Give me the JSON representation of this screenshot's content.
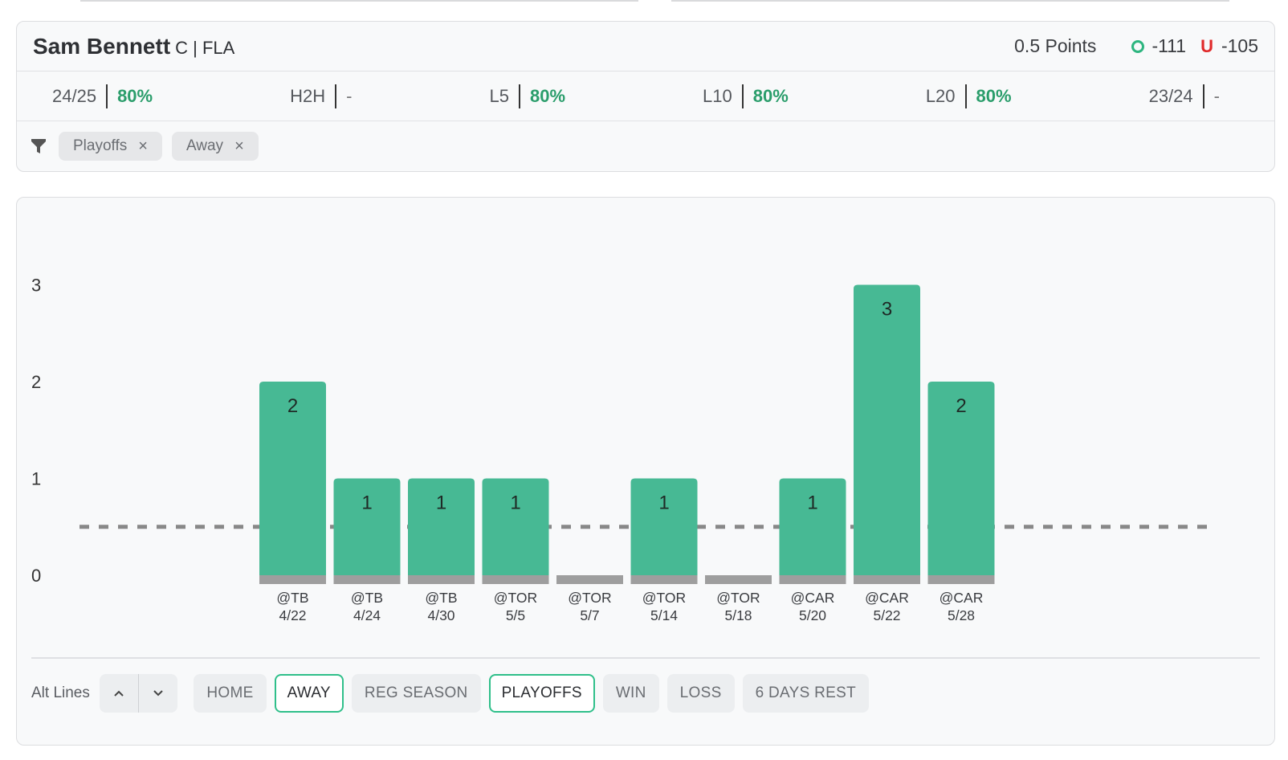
{
  "player": {
    "name": "Sam Bennett",
    "meta": "C | FLA"
  },
  "line": {
    "points_label": "0.5 Points",
    "over_odds": "-111",
    "under_letter": "U",
    "under_odds": "-105"
  },
  "stats": [
    {
      "label": "24/25",
      "value": "80%"
    },
    {
      "label": "H2H",
      "value": "-"
    },
    {
      "label": "L5",
      "value": "80%"
    },
    {
      "label": "L10",
      "value": "80%"
    },
    {
      "label": "L20",
      "value": "80%"
    },
    {
      "label": "23/24",
      "value": "-"
    }
  ],
  "active_filters": [
    {
      "label": "Playoffs",
      "remove": "×"
    },
    {
      "label": "Away",
      "remove": "×"
    }
  ],
  "chart_data": {
    "type": "bar",
    "y_ticks": [
      "3",
      "2",
      "1",
      "0"
    ],
    "ylim": [
      0,
      3
    ],
    "threshold": 0.5,
    "categories": [
      {
        "opp": "@TB",
        "date": "4/22"
      },
      {
        "opp": "@TB",
        "date": "4/24"
      },
      {
        "opp": "@TB",
        "date": "4/30"
      },
      {
        "opp": "@TOR",
        "date": "5/5"
      },
      {
        "opp": "@TOR",
        "date": "5/7"
      },
      {
        "opp": "@TOR",
        "date": "5/14"
      },
      {
        "opp": "@TOR",
        "date": "5/18"
      },
      {
        "opp": "@CAR",
        "date": "5/20"
      },
      {
        "opp": "@CAR",
        "date": "5/22"
      },
      {
        "opp": "@CAR",
        "date": "5/28"
      }
    ],
    "values": [
      2,
      1,
      1,
      1,
      0,
      1,
      0,
      1,
      3,
      2
    ],
    "colors": {
      "hit": "#47b994",
      "base": "#9e9e9e",
      "line": "#888888"
    }
  },
  "bottom": {
    "alt_lines_label": "Alt Lines",
    "buttons": [
      {
        "label": "HOME",
        "active": false
      },
      {
        "label": "AWAY",
        "active": true
      },
      {
        "label": "REG SEASON",
        "active": false
      },
      {
        "label": "PLAYOFFS",
        "active": true
      },
      {
        "label": "WIN",
        "active": false
      },
      {
        "label": "LOSS",
        "active": false
      },
      {
        "label": "6 DAYS REST",
        "active": false
      }
    ]
  }
}
